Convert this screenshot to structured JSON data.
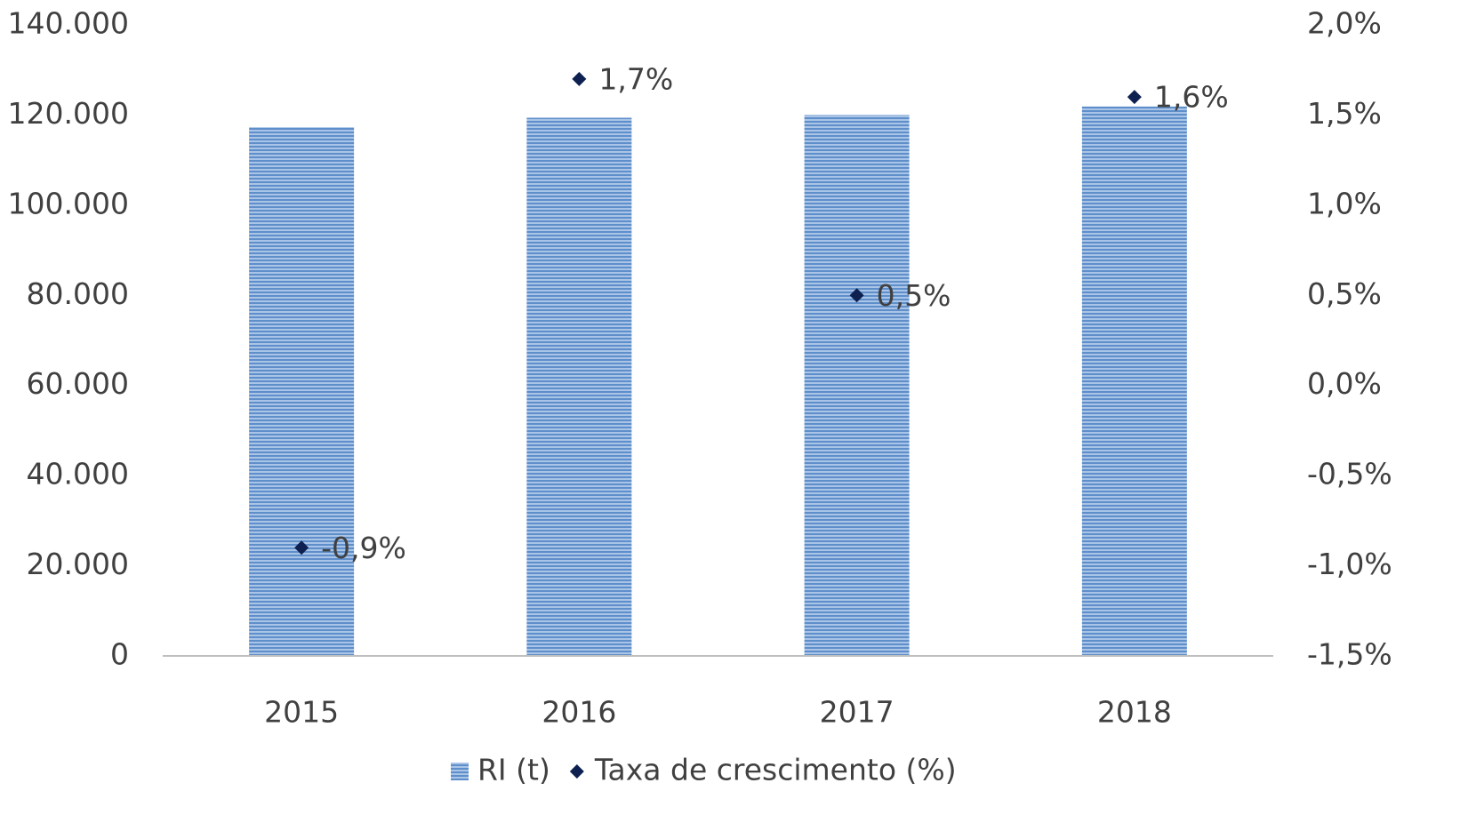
{
  "chart_data": {
    "type": "bar",
    "categories": [
      "2015",
      "2016",
      "2017",
      "2018"
    ],
    "series": [
      {
        "name": "RI (t)",
        "color": "#6f9bd1",
        "values": [
          117300,
          119400,
          120000,
          121900
        ]
      },
      {
        "name": "Taxa de crescimento (%)",
        "color": "#0d2050",
        "axis": "y2",
        "values": [
          -0.9,
          1.7,
          0.5,
          1.6
        ],
        "value_labels": [
          "-0,9%",
          "1,7%",
          "0,5%",
          "1,6%"
        ]
      }
    ],
    "ylim": [
      0,
      140000
    ],
    "yticks": [
      0,
      {
        "value": 20000,
        "label": "20.000"
      },
      {
        "value": 40000,
        "label": "40.000"
      },
      {
        "value": 60000,
        "label": "60.000"
      },
      {
        "value": 80000,
        "label": "80.000"
      },
      {
        "value": 100000,
        "label": "100.000"
      },
      {
        "value": 120000,
        "label": "120.000"
      },
      {
        "value": 140000,
        "label": "140.000"
      }
    ],
    "y2lim": [
      -1.5,
      2.0
    ],
    "y2ticks": [
      {
        "value": -1.5,
        "label": "-1,5%"
      },
      {
        "value": -1.0,
        "label": "-1,0%"
      },
      {
        "value": -0.5,
        "label": "-0,5%"
      },
      {
        "value": 0.0,
        "label": "0,0%"
      },
      {
        "value": 0.5,
        "label": "0,5%"
      },
      {
        "value": 1.0,
        "label": "1,0%"
      },
      {
        "value": 1.5,
        "label": "1,5%"
      },
      {
        "value": 2.0,
        "label": "2,0%"
      }
    ],
    "grid": false,
    "legend": "bottom"
  }
}
